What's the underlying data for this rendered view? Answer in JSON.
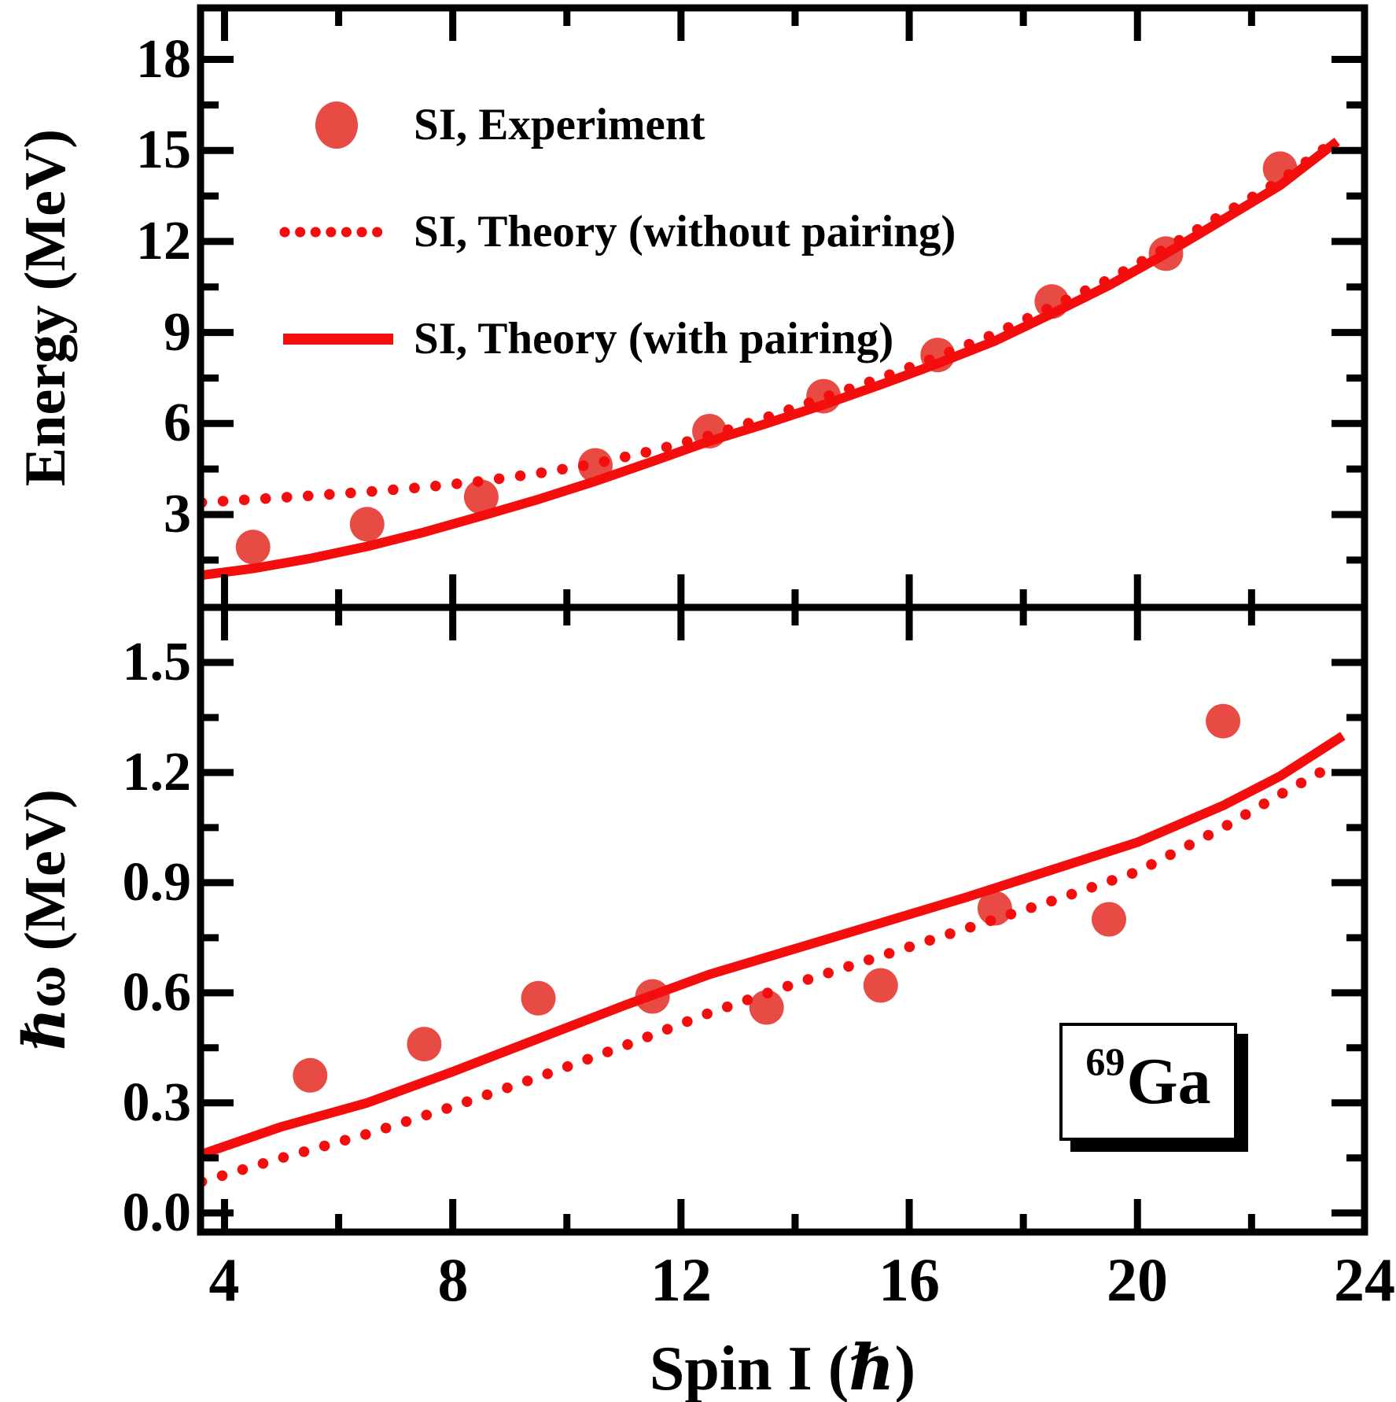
{
  "colors": {
    "line_red": "#f30d0d",
    "marker_red": "#e84a44",
    "axis_black": "#000000",
    "background": "#ffffff"
  },
  "isotope_label": {
    "mass_number": "69",
    "symbol": "Ga"
  },
  "legend": {
    "items": [
      {
        "label": "SI, Experiment",
        "style": "marker"
      },
      {
        "label": "SI, Theory (without pairing)",
        "style": "dotted"
      },
      {
        "label": "SI, Theory (with pairing)",
        "style": "solid"
      }
    ]
  },
  "axes": {
    "x": {
      "label": "Spin I (ℏ)",
      "min": 3.58,
      "max": 23.98,
      "major_ticks": [
        4,
        8,
        12,
        16,
        20,
        24
      ],
      "tick_labels": [
        "4",
        "8",
        "12",
        "16",
        "20",
        "24"
      ],
      "minor_step": 2
    },
    "top_y": {
      "label": "Energy (MeV)",
      "min": -0.06,
      "max": 19.7,
      "major_ticks": [
        3,
        6,
        9,
        12,
        15,
        18
      ],
      "tick_labels": [
        "3",
        "6",
        "9",
        "12",
        "15",
        "18"
      ],
      "minor_step": 1.5
    },
    "bottom_y": {
      "label": "ℏω (MeV)",
      "min": -0.052,
      "max": 1.65,
      "major_ticks": [
        0,
        0.3,
        0.6,
        0.9,
        1.2,
        1.5
      ],
      "tick_labels": [
        "0.0",
        "0.3",
        "0.6",
        "0.9",
        "1.2",
        "1.5"
      ],
      "minor_step": 0.15
    }
  },
  "chart_data": [
    {
      "panel": "top",
      "type": "scatter+line",
      "xlabel": "Spin I (hbar)",
      "ylabel": "Energy (MeV)",
      "xlim": [
        3.58,
        23.98
      ],
      "ylim": [
        -0.06,
        19.7
      ],
      "series": [
        {
          "name": "SI, Experiment",
          "style": "scatter",
          "points": [
            [
              4.5,
              1.93
            ],
            [
              6.5,
              2.68
            ],
            [
              8.5,
              3.58
            ],
            [
              10.5,
              4.62
            ],
            [
              12.5,
              5.75
            ],
            [
              14.5,
              6.9
            ],
            [
              16.5,
              8.26
            ],
            [
              18.5,
              10.02
            ],
            [
              20.5,
              11.6
            ],
            [
              22.5,
              14.4
            ]
          ]
        },
        {
          "name": "SI, Theory (without pairing)",
          "style": "dotted",
          "points": [
            [
              3.6,
              3.4
            ],
            [
              4.5,
              3.5
            ],
            [
              5.5,
              3.62
            ],
            [
              6.5,
              3.75
            ],
            [
              7.5,
              3.9
            ],
            [
              8.5,
              4.1
            ],
            [
              9.5,
              4.36
            ],
            [
              10.5,
              4.68
            ],
            [
              11.5,
              5.1
            ],
            [
              12.5,
              5.6
            ],
            [
              13.5,
              6.2
            ],
            [
              14.5,
              6.85
            ],
            [
              15.5,
              7.5
            ],
            [
              16.5,
              8.2
            ],
            [
              17.5,
              8.95
            ],
            [
              18.5,
              9.85
            ],
            [
              19.5,
              10.75
            ],
            [
              20.5,
              11.78
            ],
            [
              21.5,
              12.9
            ],
            [
              22.5,
              14.0
            ],
            [
              23.3,
              15.1
            ]
          ]
        },
        {
          "name": "SI, Theory (with pairing)",
          "style": "solid",
          "points": [
            [
              3.6,
              1.0
            ],
            [
              4.5,
              1.22
            ],
            [
              5.5,
              1.55
            ],
            [
              6.5,
              1.95
            ],
            [
              7.5,
              2.42
            ],
            [
              8.5,
              2.95
            ],
            [
              9.5,
              3.5
            ],
            [
              10.5,
              4.1
            ],
            [
              11.5,
              4.75
            ],
            [
              12.5,
              5.42
            ],
            [
              13.5,
              6.0
            ],
            [
              14.5,
              6.62
            ],
            [
              15.5,
              7.28
            ],
            [
              16.5,
              7.98
            ],
            [
              17.5,
              8.72
            ],
            [
              18.5,
              9.62
            ],
            [
              19.5,
              10.55
            ],
            [
              20.5,
              11.6
            ],
            [
              21.5,
              12.72
            ],
            [
              22.5,
              13.85
            ],
            [
              23.5,
              15.3
            ]
          ]
        }
      ]
    },
    {
      "panel": "bottom",
      "type": "scatter+line",
      "xlabel": "Spin I (hbar)",
      "ylabel": "hbar-omega (MeV)",
      "xlim": [
        3.58,
        23.98
      ],
      "ylim": [
        -0.052,
        1.65
      ],
      "series": [
        {
          "name": "SI, Experiment",
          "style": "scatter",
          "points": [
            [
              5.5,
              0.375
            ],
            [
              7.5,
              0.46
            ],
            [
              9.5,
              0.585
            ],
            [
              11.5,
              0.59
            ],
            [
              13.5,
              0.56
            ],
            [
              15.5,
              0.62
            ],
            [
              17.5,
              0.83
            ],
            [
              19.5,
              0.8
            ],
            [
              21.5,
              1.34
            ]
          ]
        },
        {
          "name": "SI, Theory (without pairing)",
          "style": "dotted",
          "points": [
            [
              3.6,
              0.085
            ],
            [
              5.0,
              0.15
            ],
            [
              6.5,
              0.215
            ],
            [
              8.0,
              0.29
            ],
            [
              9.5,
              0.37
            ],
            [
              11.0,
              0.455
            ],
            [
              12.5,
              0.545
            ],
            [
              14.0,
              0.625
            ],
            [
              15.5,
              0.7
            ],
            [
              17.0,
              0.775
            ],
            [
              18.5,
              0.85
            ],
            [
              20.0,
              0.93
            ],
            [
              21.5,
              1.05
            ],
            [
              22.5,
              1.14
            ],
            [
              23.2,
              1.2
            ]
          ]
        },
        {
          "name": "SI, Theory (with pairing)",
          "style": "solid",
          "points": [
            [
              3.6,
              0.16
            ],
            [
              5.0,
              0.235
            ],
            [
              6.5,
              0.3
            ],
            [
              8.0,
              0.385
            ],
            [
              9.5,
              0.475
            ],
            [
              11.0,
              0.565
            ],
            [
              12.5,
              0.65
            ],
            [
              14.0,
              0.72
            ],
            [
              15.5,
              0.79
            ],
            [
              17.0,
              0.86
            ],
            [
              18.5,
              0.935
            ],
            [
              20.0,
              1.01
            ],
            [
              21.5,
              1.11
            ],
            [
              22.5,
              1.19
            ],
            [
              23.6,
              1.3
            ]
          ]
        }
      ]
    }
  ]
}
